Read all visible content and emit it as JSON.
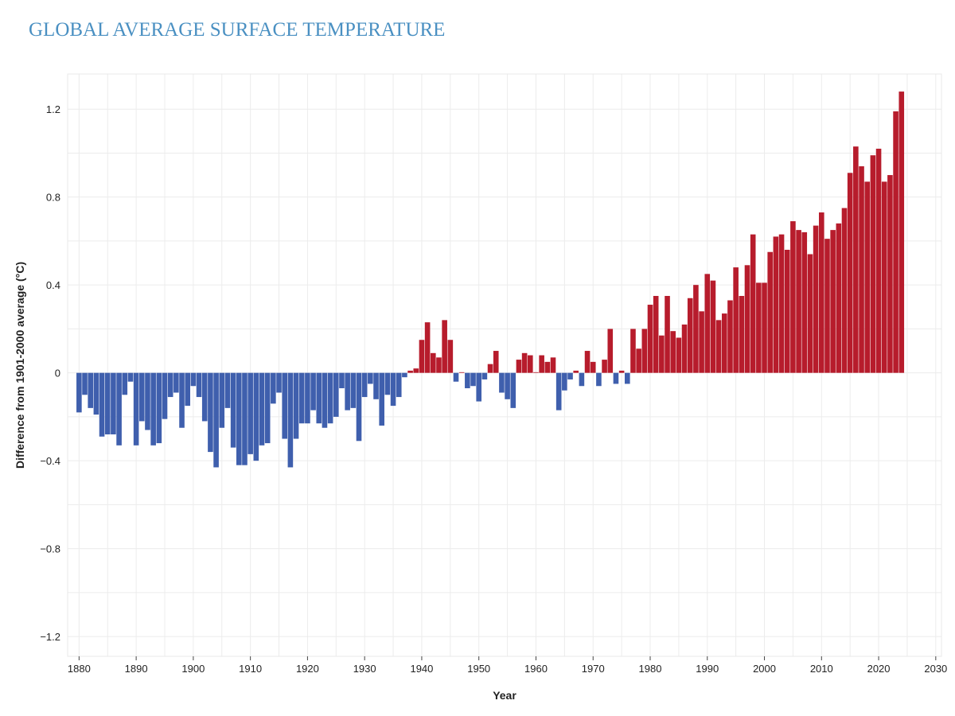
{
  "chart_data": {
    "type": "bar",
    "title": "GLOBAL AVERAGE SURFACE TEMPERATURE",
    "xlabel": "Year",
    "ylabel": "Difference from 1901-2000 average (°C)",
    "xlim": [
      1878,
      2031
    ],
    "ylim": [
      -1.29,
      1.36
    ],
    "xticks": [
      1880,
      1890,
      1900,
      1910,
      1920,
      1930,
      1940,
      1950,
      1960,
      1970,
      1980,
      1990,
      2000,
      2010,
      2020,
      2030
    ],
    "yticks": [
      1.2,
      0.8,
      0.4,
      0,
      -0.4,
      -0.8,
      -1.2
    ],
    "ytick_labels": [
      "1.2",
      "0.8",
      "0.4",
      "0",
      "−0.4",
      "−0.8",
      "−1.2"
    ],
    "grid": true,
    "colors": {
      "positive": "#b71c2c",
      "negative": "#3f5fad",
      "title": "#4a90c2"
    },
    "start_year": 1880,
    "values": [
      -0.18,
      -0.1,
      -0.16,
      -0.19,
      -0.29,
      -0.28,
      -0.28,
      -0.33,
      -0.1,
      -0.04,
      -0.33,
      -0.22,
      -0.26,
      -0.33,
      -0.32,
      -0.21,
      -0.11,
      -0.09,
      -0.25,
      -0.15,
      -0.06,
      -0.11,
      -0.22,
      -0.36,
      -0.43,
      -0.25,
      -0.16,
      -0.34,
      -0.42,
      -0.42,
      -0.37,
      -0.4,
      -0.33,
      -0.32,
      -0.14,
      -0.09,
      -0.3,
      -0.43,
      -0.3,
      -0.23,
      -0.23,
      -0.17,
      -0.23,
      -0.25,
      -0.23,
      -0.2,
      -0.07,
      -0.17,
      -0.16,
      -0.31,
      -0.11,
      -0.05,
      -0.12,
      -0.24,
      -0.1,
      -0.15,
      -0.11,
      -0.02,
      0.01,
      0.02,
      0.15,
      0.23,
      0.09,
      0.07,
      0.24,
      0.15,
      -0.04,
      0.003,
      -0.07,
      -0.06,
      -0.13,
      -0.03,
      0.04,
      0.1,
      -0.09,
      -0.12,
      -0.16,
      0.06,
      0.09,
      0.08,
      0.003,
      0.08,
      0.05,
      0.07,
      -0.17,
      -0.08,
      -0.03,
      0.01,
      -0.06,
      0.1,
      0.05,
      -0.06,
      0.06,
      0.2,
      -0.05,
      0.01,
      -0.05,
      0.2,
      0.11,
      0.2,
      0.31,
      0.35,
      0.17,
      0.35,
      0.19,
      0.16,
      0.22,
      0.34,
      0.4,
      0.28,
      0.45,
      0.42,
      0.24,
      0.27,
      0.33,
      0.48,
      0.35,
      0.49,
      0.63,
      0.41,
      0.41,
      0.55,
      0.62,
      0.63,
      0.56,
      0.69,
      0.65,
      0.64,
      0.54,
      0.67,
      0.73,
      0.61,
      0.65,
      0.68,
      0.75,
      0.91,
      1.03,
      0.94,
      0.87,
      0.99,
      1.02,
      0.87,
      0.9,
      1.19,
      1.28
    ]
  }
}
